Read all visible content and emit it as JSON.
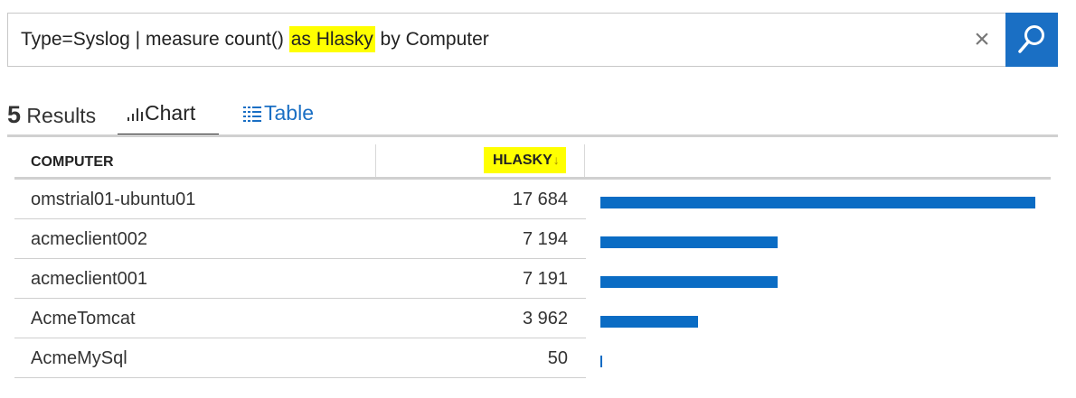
{
  "search": {
    "query_before": "Type=Syslog | measure count() ",
    "query_highlight": "as Hlasky",
    "query_after": " by Computer",
    "clear_glyph": "×",
    "search_icon": "magnifier-icon",
    "accent_color": "#1a6fc4"
  },
  "results": {
    "count": "5",
    "label": " Results"
  },
  "tabs": {
    "chart": "Chart",
    "table": "Table",
    "active": "chart"
  },
  "columns": {
    "computer": "COMPUTER",
    "hlasky": "HLASKY",
    "sort": "descending",
    "highlight_color": "#ffff00"
  },
  "rows": [
    {
      "computer": "omstrial01-ubuntu01",
      "value": "17 684"
    },
    {
      "computer": "acmeclient002",
      "value": "7 194"
    },
    {
      "computer": "acmeclient001",
      "value": "7 191"
    },
    {
      "computer": "AcmeTomcat",
      "value": "3 962"
    },
    {
      "computer": "AcmeMySql",
      "value": "50"
    }
  ],
  "chart_data": {
    "type": "bar",
    "categories": [
      "omstrial01-ubuntu01",
      "acmeclient002",
      "acmeclient001",
      "AcmeTomcat",
      "AcmeMySql"
    ],
    "values": [
      17684,
      7194,
      7191,
      3962,
      50
    ],
    "xlim": [
      0,
      17684
    ],
    "bar_color": "#0a6cc4"
  }
}
